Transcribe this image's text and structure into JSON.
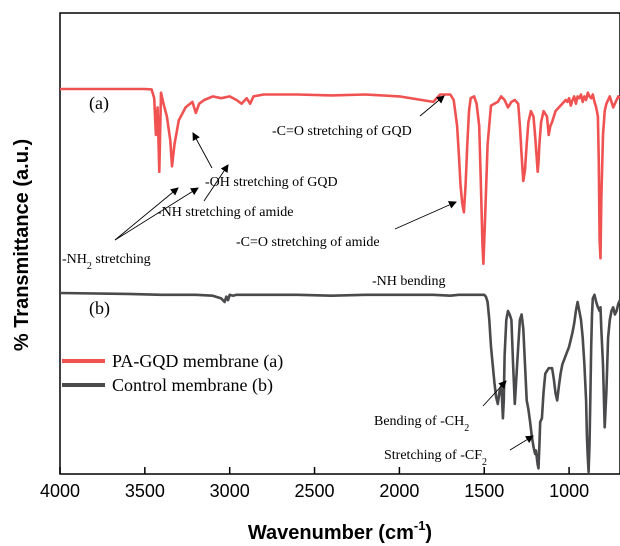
{
  "chart_data": {
    "type": "line",
    "xlabel": "Wavenumber (cm",
    "xlabel_sup": "-1",
    "xlabel_end": ")",
    "ylabel": "% Transmittance (a.u.)",
    "xlim": [
      4000,
      700
    ],
    "x_ticks": [
      "4000",
      "3500",
      "3000",
      "2500",
      "2000",
      "1500",
      "1000"
    ],
    "x_tick_values": [
      4000,
      3500,
      3000,
      2500,
      2000,
      1500,
      1000
    ],
    "legend_placement": "left",
    "series": [
      {
        "name": "PA-GQD membrane (a)",
        "curve_label": "(a)",
        "color": "#f05252",
        "x": [
          4000,
          3600,
          3500,
          3460,
          3445,
          3435,
          3425,
          3415,
          3405,
          3390,
          3370,
          3350,
          3340,
          3325,
          3300,
          3260,
          3220,
          3200,
          3180,
          3150,
          3100,
          3050,
          3000,
          2960,
          2930,
          2900,
          2880,
          2860,
          2800,
          2600,
          2400,
          2200,
          2000,
          1800,
          1760,
          1700,
          1680,
          1660,
          1650,
          1640,
          1630,
          1620,
          1610,
          1600,
          1590,
          1580,
          1560,
          1545,
          1530,
          1520,
          1510,
          1505,
          1495,
          1480,
          1460,
          1440,
          1420,
          1400,
          1380,
          1360,
          1340,
          1320,
          1300,
          1290,
          1280,
          1270,
          1260,
          1250,
          1240,
          1225,
          1210,
          1200,
          1190,
          1185,
          1180,
          1175,
          1165,
          1150,
          1130,
          1120,
          1110,
          1100,
          1080,
          1060,
          1040,
          1020,
          1010,
          1000,
          990,
          980,
          970,
          960,
          950,
          940,
          930,
          920,
          910,
          900,
          890,
          880,
          870,
          860,
          850,
          840,
          830,
          825,
          820,
          815,
          810,
          800,
          790,
          780,
          770,
          760,
          750,
          740,
          730,
          720,
          710,
          700
        ],
        "y": [
          100,
          100,
          100,
          99.8,
          95,
          75,
          90,
          55,
          98,
          92,
          85,
          72,
          58,
          70,
          83,
          90,
          93,
          87,
          92,
          94,
          96,
          95,
          96,
          94,
          92,
          95,
          92,
          96,
          97,
          97,
          96.5,
          97,
          96,
          93,
          97,
          97,
          94,
          80,
          65,
          48,
          38,
          33,
          48,
          70,
          88,
          95,
          96,
          92,
          80,
          50,
          15,
          5,
          30,
          70,
          91,
          92,
          93,
          96,
          94,
          90,
          93,
          94,
          92,
          80,
          64,
          50,
          56,
          70,
          82,
          88,
          85,
          74,
          62,
          55,
          60,
          70,
          82,
          88,
          85,
          75,
          80,
          82,
          88,
          90,
          92,
          94,
          93,
          95,
          91,
          94,
          96,
          92,
          96,
          95,
          97,
          93,
          96,
          94,
          98,
          96,
          95,
          97,
          93,
          90,
          85,
          60,
          18,
          8,
          40,
          75,
          88,
          92,
          94,
          96,
          93,
          90,
          92,
          94,
          96,
          95
        ]
      },
      {
        "name": "Control membrane (b)",
        "curve_label": "(b)",
        "color": "#4a4a4c",
        "x": [
          4000,
          3600,
          3400,
          3200,
          3100,
          3050,
          3030,
          3020,
          3010,
          3000,
          2980,
          2960,
          2900,
          2800,
          2600,
          2400,
          2200,
          2000,
          1800,
          1700,
          1650,
          1600,
          1550,
          1520,
          1510,
          1500,
          1490,
          1480,
          1470,
          1460,
          1450,
          1440,
          1430,
          1420,
          1410,
          1400,
          1395,
          1390,
          1385,
          1380,
          1370,
          1360,
          1350,
          1340,
          1330,
          1320,
          1300,
          1290,
          1280,
          1270,
          1260,
          1250,
          1240,
          1230,
          1220,
          1210,
          1205,
          1200,
          1195,
          1190,
          1185,
          1180,
          1175,
          1170,
          1160,
          1150,
          1140,
          1120,
          1100,
          1090,
          1080,
          1070,
          1060,
          1050,
          1040,
          1020,
          1000,
          980,
          970,
          960,
          950,
          940,
          930,
          920,
          910,
          900,
          895,
          890,
          885,
          880,
          875,
          870,
          865,
          860,
          850,
          840,
          830,
          820,
          815,
          810,
          800,
          790,
          780,
          770,
          760,
          750,
          740,
          730,
          720,
          710,
          700
        ],
        "y": [
          100,
          99.5,
          99,
          99,
          98.5,
          97,
          95,
          98,
          96,
          99,
          98.5,
          99,
          99,
          99,
          99,
          98.5,
          99,
          99,
          99,
          98.5,
          99,
          99,
          99,
          99,
          99,
          99,
          98,
          95,
          85,
          70,
          60,
          50,
          42,
          38,
          45,
          48,
          40,
          30,
          40,
          65,
          85,
          90,
          88,
          85,
          60,
          38,
          70,
          85,
          88,
          80,
          60,
          40,
          35,
          28,
          20,
          14,
          12,
          10,
          12,
          8,
          4,
          2,
          15,
          28,
          30,
          45,
          55,
          58,
          58,
          52,
          44,
          40,
          48,
          55,
          60,
          65,
          70,
          78,
          83,
          90,
          95,
          90,
          85,
          75,
          60,
          40,
          20,
          8,
          0,
          15,
          40,
          70,
          88,
          97,
          99,
          95,
          92,
          90,
          92,
          80,
          60,
          25,
          45,
          75,
          85,
          90,
          92,
          88,
          90,
          94,
          96
        ]
      }
    ],
    "annotations": [
      {
        "id": "nh2",
        "text": "-NH",
        "sub": "2",
        "tail": " stretching"
      },
      {
        "id": "nh-amide",
        "text": "-NH stretching of amide",
        "sub": "",
        "tail": ""
      },
      {
        "id": "oh-gqd",
        "text": "-OH stretching of GQD",
        "sub": "",
        "tail": ""
      },
      {
        "id": "co-gqd",
        "text": "-C=O stretching of GQD",
        "sub": "",
        "tail": ""
      },
      {
        "id": "co-amide",
        "text": "-C=O stretching of amide",
        "sub": "",
        "tail": ""
      },
      {
        "id": "nh-bend",
        "text": "-NH bending",
        "sub": "",
        "tail": ""
      },
      {
        "id": "ch2-bend",
        "text": "Bending of -CH",
        "sub": "2",
        "tail": ""
      },
      {
        "id": "cf2-stretch",
        "text": "Stretching of -CF",
        "sub": "2",
        "tail": ""
      }
    ]
  }
}
